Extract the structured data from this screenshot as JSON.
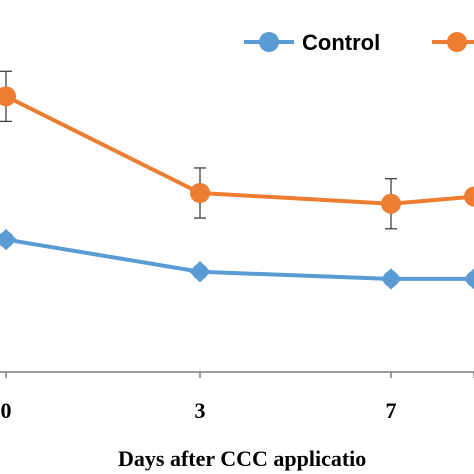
{
  "chart_data": {
    "type": "line",
    "categories": [
      "0",
      "3",
      "7",
      ""
    ],
    "xlabel": "Days after CCC applicatio",
    "ylabel": "",
    "ylim": [
      0,
      100
    ],
    "grid": false,
    "legend_position": "top-right",
    "series": [
      {
        "name": "Control",
        "color": "#5b9bd5",
        "values": [
          37,
          28,
          26,
          26
        ],
        "error": [
          0,
          1,
          1,
          1
        ]
      },
      {
        "name": "",
        "color": "#ed7d31",
        "values": [
          77,
          50,
          47,
          49
        ],
        "error": [
          7,
          7,
          7,
          0
        ]
      }
    ]
  }
}
